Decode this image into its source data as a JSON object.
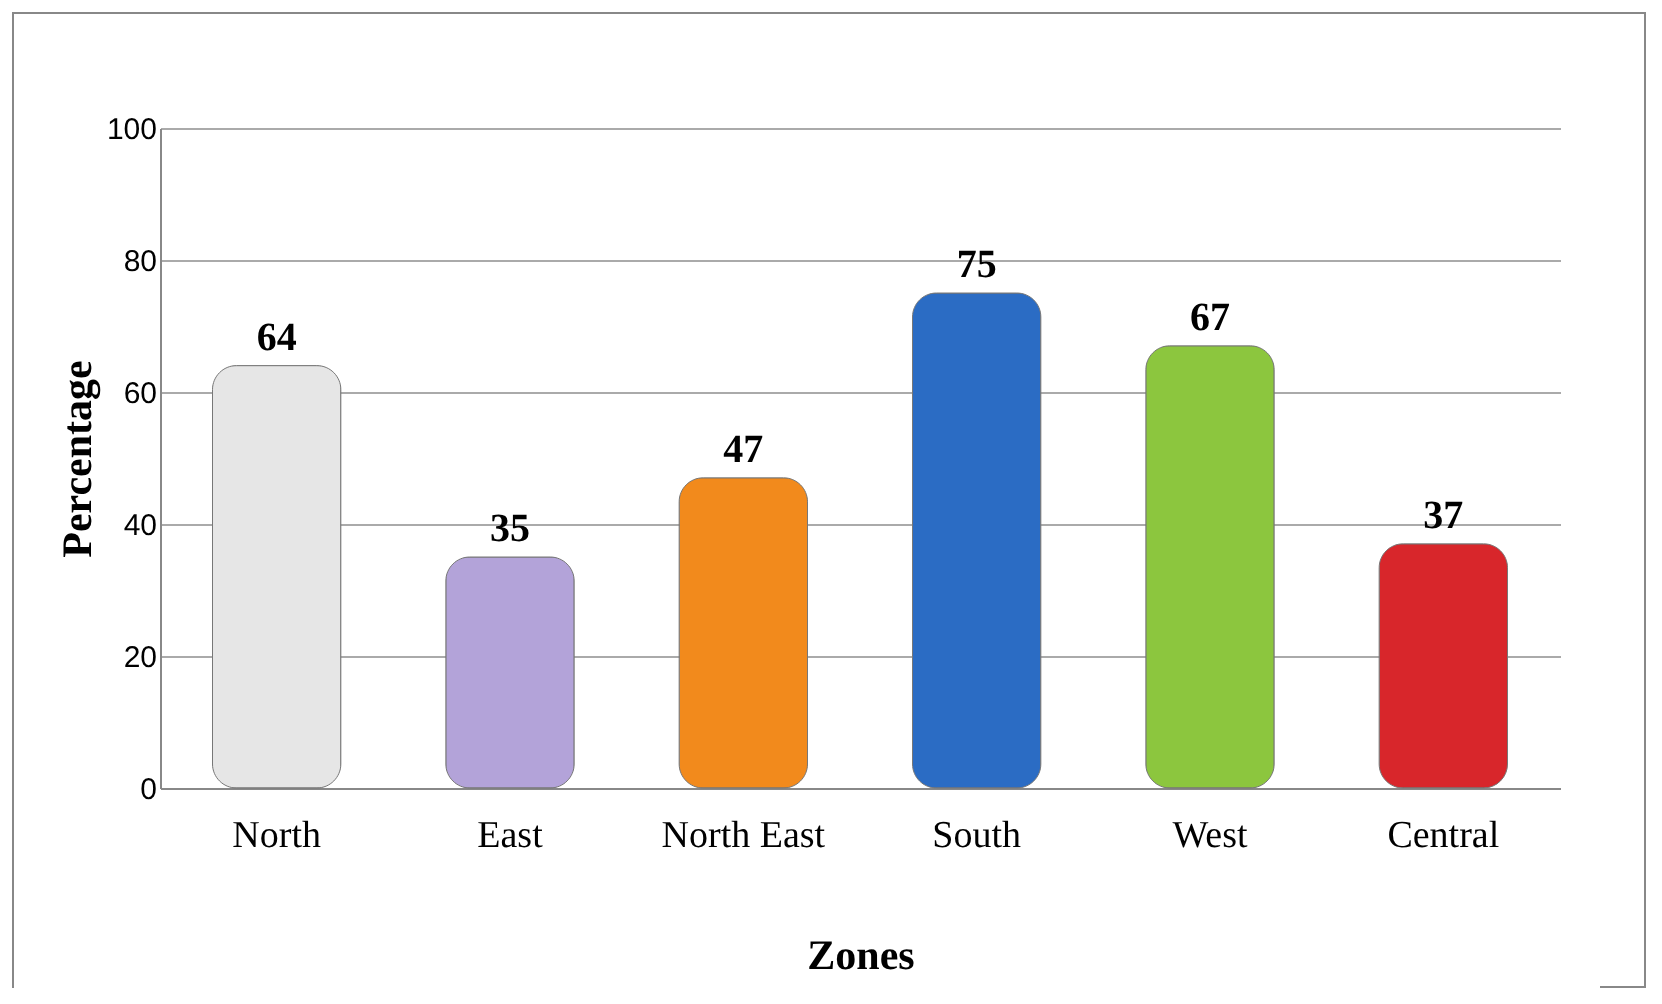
{
  "chart_data": {
    "type": "bar",
    "xlabel": "Zones",
    "ylabel": "Percentage",
    "categories": [
      "North",
      "East",
      "North East",
      "South",
      "West",
      "Central"
    ],
    "values": [
      64,
      35,
      47,
      75,
      67,
      37
    ],
    "colors": [
      "#e6e6e6",
      "#b3a3d9",
      "#f28a1c",
      "#2b6cc4",
      "#8cc63e",
      "#d8262b"
    ],
    "ylim": [
      0,
      100
    ],
    "yticks": [
      0,
      20,
      40,
      60,
      80,
      100
    ],
    "grid": "y",
    "data_labels": true
  }
}
